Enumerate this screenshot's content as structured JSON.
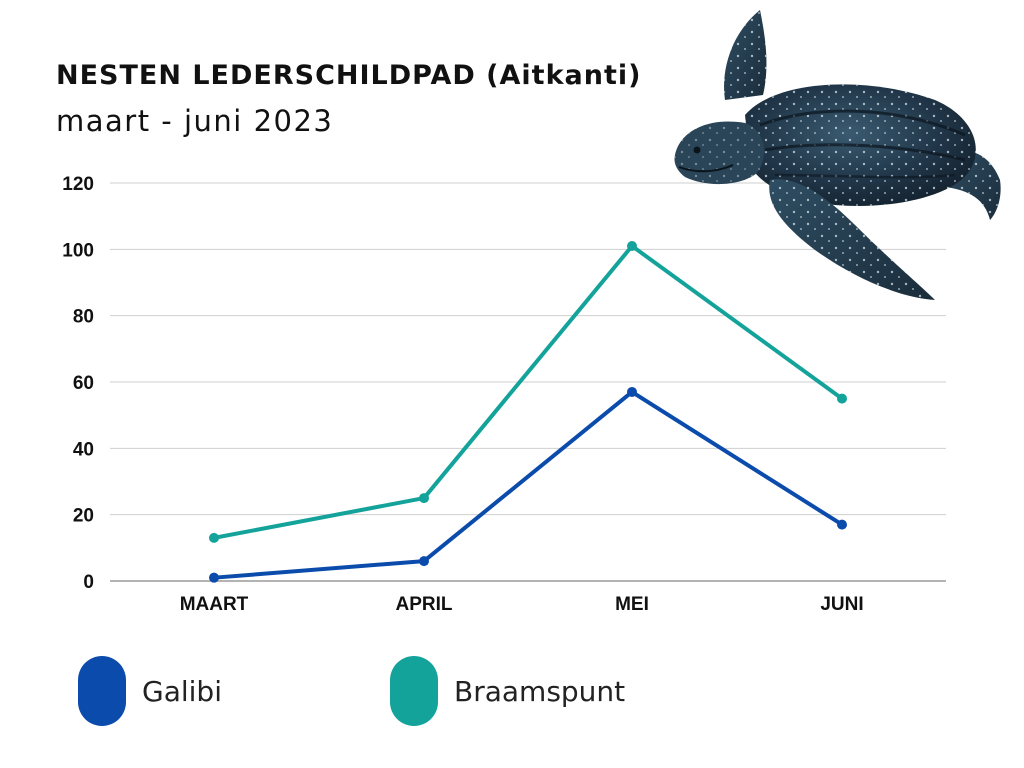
{
  "chart_data": {
    "type": "line",
    "title": "NESTEN LEDERSCHILDPAD (Aitkanti)",
    "subtitle": "maart - juni 2023",
    "categories": [
      "MAART",
      "APRIL",
      "MEI",
      "JUNI"
    ],
    "series": [
      {
        "name": "Galibi",
        "values": [
          1,
          6,
          57,
          17
        ],
        "color": "#0a4bac"
      },
      {
        "name": "Braamspunt",
        "values": [
          13,
          25,
          101,
          55
        ],
        "color": "#14a39b"
      }
    ],
    "y_ticks": [
      "0",
      "20",
      "40",
      "60",
      "80",
      "100",
      "120"
    ],
    "ylim": [
      0,
      120
    ],
    "grid": true,
    "legend_position": "bottom",
    "xlabel": "",
    "ylabel": ""
  },
  "decoration": {
    "illustration": "leatherback-turtle-icon"
  }
}
